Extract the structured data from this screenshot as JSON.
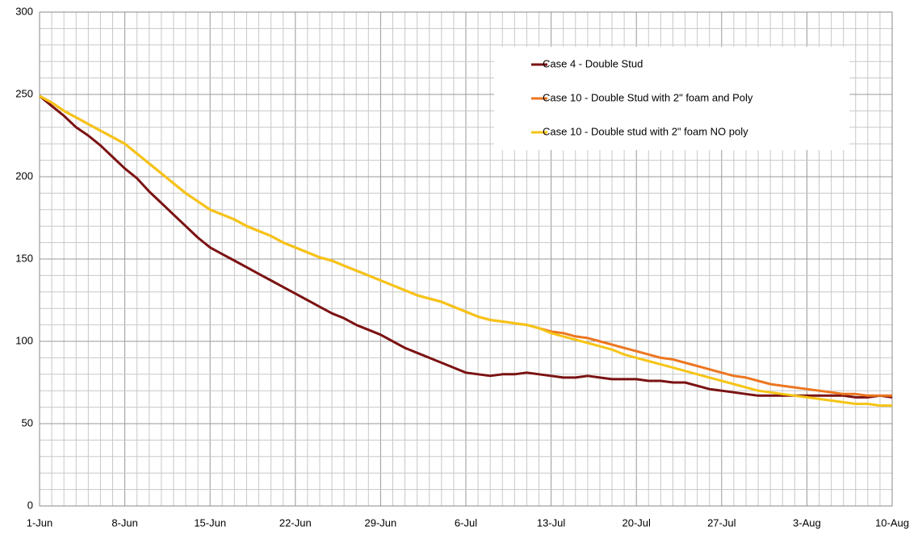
{
  "chart_data": {
    "type": "line",
    "categories": [
      "1-Jun",
      null,
      null,
      null,
      null,
      null,
      null,
      "8-Jun",
      null,
      null,
      null,
      null,
      null,
      null,
      "15-Jun",
      null,
      null,
      null,
      null,
      null,
      null,
      "22-Jun",
      null,
      null,
      null,
      null,
      null,
      null,
      "29-Jun",
      null,
      null,
      null,
      null,
      null,
      null,
      "6-Jul",
      null,
      null,
      null,
      null,
      null,
      null,
      "13-Jul",
      null,
      null,
      null,
      null,
      null,
      null,
      "20-Jul",
      null,
      null,
      null,
      null,
      null,
      null,
      "27-Jul",
      null,
      null,
      null,
      null,
      null,
      null,
      "3-Aug",
      null,
      null,
      null,
      null,
      null,
      null,
      "10-Aug"
    ],
    "series": [
      {
        "name": "Case 4 - Double Stud",
        "color": "#7b1212",
        "values": [
          249,
          243,
          237,
          230,
          225,
          219,
          212,
          205,
          199,
          191,
          184,
          177,
          170,
          163,
          157,
          153,
          149,
          145,
          141,
          137,
          133,
          129,
          125,
          121,
          117,
          114,
          110,
          107,
          104,
          100,
          96,
          93,
          90,
          87,
          84,
          81,
          80,
          79,
          80,
          80,
          81,
          80,
          79,
          78,
          78,
          79,
          78,
          77,
          77,
          77,
          76,
          76,
          75,
          75,
          73,
          71,
          70,
          69,
          68,
          67,
          67,
          67,
          67,
          67,
          67,
          67,
          67,
          66,
          66,
          67,
          66
        ]
      },
      {
        "name": "Case 10 - Double Stud with 2\" foam and Poly",
        "color": "#ec7620",
        "values": [
          249,
          245,
          240,
          236,
          232,
          228,
          224,
          220,
          214,
          208,
          202,
          196,
          190,
          185,
          180,
          177,
          174,
          170,
          167,
          164,
          160,
          157,
          154,
          151,
          149,
          146,
          143,
          140,
          137,
          134,
          131,
          128,
          126,
          124,
          121,
          118,
          115,
          113,
          112,
          111,
          110,
          108,
          106,
          105,
          103,
          102,
          100,
          98,
          96,
          94,
          92,
          90,
          89,
          87,
          85,
          83,
          81,
          79,
          78,
          76,
          74,
          73,
          72,
          71,
          70,
          69,
          68,
          68,
          67,
          67,
          67
        ]
      },
      {
        "name": "Case 10 - Double stud with 2\" foam NO poly",
        "color": "#f6c416",
        "values": [
          249,
          245,
          240,
          236,
          232,
          228,
          224,
          220,
          214,
          208,
          202,
          196,
          190,
          185,
          180,
          177,
          174,
          170,
          167,
          164,
          160,
          157,
          154,
          151,
          149,
          146,
          143,
          140,
          137,
          134,
          131,
          128,
          126,
          124,
          121,
          118,
          115,
          113,
          112,
          111,
          110,
          108,
          105,
          103,
          101,
          99,
          97,
          95,
          92,
          90,
          88,
          86,
          84,
          82,
          80,
          78,
          76,
          74,
          72,
          70,
          69,
          68,
          67,
          66,
          65,
          64,
          63,
          62,
          62,
          61,
          61
        ]
      }
    ],
    "ylim": [
      0,
      300
    ],
    "yticks": [
      0,
      50,
      100,
      150,
      200,
      250,
      300
    ],
    "minor_yticks": [
      10,
      20,
      30,
      40,
      60,
      70,
      80,
      90,
      110,
      120,
      130,
      140,
      160,
      170,
      180,
      190,
      210,
      220,
      230,
      240,
      260,
      270,
      280,
      290
    ],
    "grid": true,
    "legend": "top-right"
  }
}
